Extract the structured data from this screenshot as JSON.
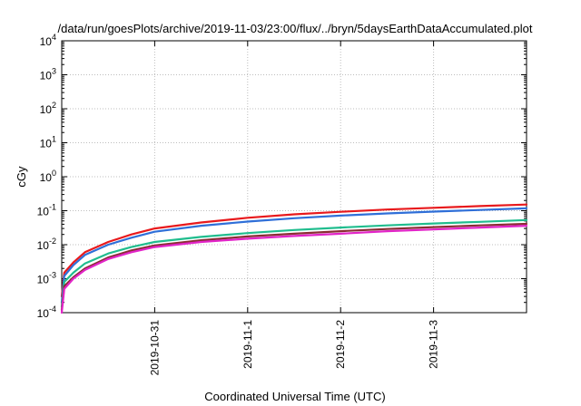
{
  "chart_data": {
    "type": "line",
    "title": "/data/run/goesPlots/archive/2019-11-03/23:00/flux/../bryn/5daysEarthDataAccumulated.plot",
    "xlabel": "Coordinated Universal Time (UTC)",
    "ylabel": "cGy",
    "y_scale": "log",
    "ylim": [
      0.0001,
      10000
    ],
    "xlim": [
      "2019-10-30",
      "2019-11-04"
    ],
    "y_ticks": [
      {
        "base": "10",
        "exp": "-4"
      },
      {
        "base": "10",
        "exp": "-3"
      },
      {
        "base": "10",
        "exp": "-2"
      },
      {
        "base": "10",
        "exp": "-1"
      },
      {
        "base": "10",
        "exp": "0"
      },
      {
        "base": "10",
        "exp": "1"
      },
      {
        "base": "10",
        "exp": "2"
      },
      {
        "base": "10",
        "exp": "3"
      },
      {
        "base": "10",
        "exp": "4"
      }
    ],
    "x_ticks": [
      "2019-10-31",
      "2019-11-1",
      "2019-11-2",
      "2019-11-3"
    ],
    "grid": true,
    "grid_style": "dotted",
    "colors": {
      "red": "#e8191c",
      "blue": "#2f6fd8",
      "green": "#20bd8e",
      "dark": "#8a2d33",
      "magenta": "#e224c8"
    },
    "series": [
      {
        "color": "#e8191c",
        "x": [
          "2019-10-30",
          "2019-10-30T00:40",
          "2019-10-30T03:00",
          "2019-10-30T06:00",
          "2019-10-30T12:00",
          "2019-10-30T18:00",
          "2019-10-31",
          "2019-10-31T12:00",
          "2019-11-01",
          "2019-11-01T12:00",
          "2019-11-02",
          "2019-11-02T12:00",
          "2019-11-03",
          "2019-11-03T12:00",
          "2019-11-04"
        ],
        "y": [
          0.0003,
          0.0015,
          0.003,
          0.006,
          0.012,
          0.02,
          0.03,
          0.045,
          0.062,
          0.078,
          0.093,
          0.108,
          0.122,
          0.137,
          0.152
        ]
      },
      {
        "color": "#2f6fd8",
        "x": [
          "2019-10-30",
          "2019-10-30T00:40",
          "2019-10-30T03:00",
          "2019-10-30T06:00",
          "2019-10-30T12:00",
          "2019-10-30T18:00",
          "2019-10-31",
          "2019-10-31T12:00",
          "2019-11-01",
          "2019-11-01T12:00",
          "2019-11-02",
          "2019-11-02T12:00",
          "2019-11-03",
          "2019-11-03T12:00",
          "2019-11-04"
        ],
        "y": [
          0.0002,
          0.0012,
          0.0025,
          0.005,
          0.01,
          0.016,
          0.024,
          0.036,
          0.048,
          0.06,
          0.072,
          0.083,
          0.094,
          0.105,
          0.117
        ]
      },
      {
        "color": "#20bd8e",
        "x": [
          "2019-10-30",
          "2019-10-30T00:40",
          "2019-10-30T03:00",
          "2019-10-30T06:00",
          "2019-10-30T12:00",
          "2019-10-30T18:00",
          "2019-10-31",
          "2019-10-31T12:00",
          "2019-11-01",
          "2019-11-01T12:00",
          "2019-11-02",
          "2019-11-02T12:00",
          "2019-11-03",
          "2019-11-03T12:00",
          "2019-11-04"
        ],
        "y": [
          0.00015,
          0.0008,
          0.0015,
          0.0028,
          0.0055,
          0.0085,
          0.012,
          0.017,
          0.022,
          0.027,
          0.032,
          0.037,
          0.042,
          0.047,
          0.053
        ]
      },
      {
        "color": "#8a2d33",
        "x": [
          "2019-10-30",
          "2019-10-30T00:40",
          "2019-10-30T03:00",
          "2019-10-30T06:00",
          "2019-10-30T12:00",
          "2019-10-30T18:00",
          "2019-10-31",
          "2019-10-31T12:00",
          "2019-11-01",
          "2019-11-01T12:00",
          "2019-11-02",
          "2019-11-02T12:00",
          "2019-11-03",
          "2019-11-03T12:00",
          "2019-11-04"
        ],
        "y": [
          0.00012,
          0.0006,
          0.0011,
          0.002,
          0.0042,
          0.0068,
          0.0095,
          0.0135,
          0.0175,
          0.021,
          0.025,
          0.029,
          0.033,
          0.037,
          0.041
        ]
      },
      {
        "color": "#e224c8",
        "x": [
          "2019-10-30",
          "2019-10-30T00:40",
          "2019-10-30T03:00",
          "2019-10-30T06:00",
          "2019-10-30T12:00",
          "2019-10-30T18:00",
          "2019-10-31",
          "2019-10-31T12:00",
          "2019-11-01",
          "2019-11-01T12:00",
          "2019-11-02",
          "2019-11-02T12:00",
          "2019-11-03",
          "2019-11-03T12:00",
          "2019-11-04"
        ],
        "y": [
          0.0001,
          0.0005,
          0.001,
          0.0018,
          0.0038,
          0.006,
          0.0085,
          0.012,
          0.015,
          0.018,
          0.021,
          0.025,
          0.028,
          0.032,
          0.036
        ]
      }
    ]
  }
}
